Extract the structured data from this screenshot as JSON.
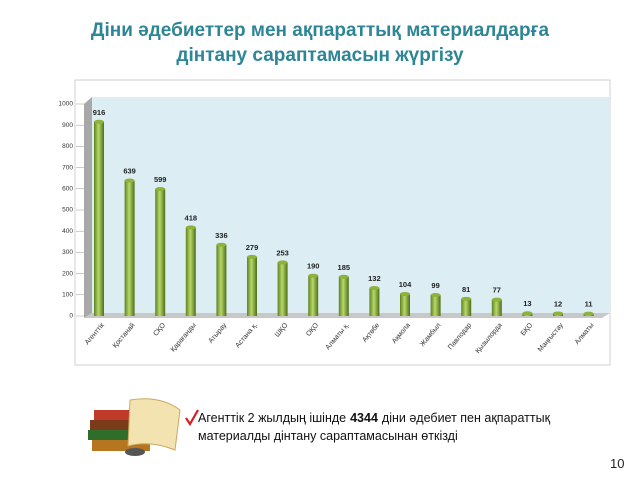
{
  "title": [
    "Діни әдебиеттер мен ақпараттық материалдарға",
    "дінтану сараптамасын жүргізу"
  ],
  "chart_data": {
    "type": "bar",
    "categories": [
      "Агенттік",
      "Қостанай",
      "СҚО",
      "Қарағанды",
      "Атырау",
      "Астана қ.",
      "ШҚО",
      "ОҚО",
      "Алматы қ.",
      "Ақтөбе",
      "Ақмола",
      "Жамбыл",
      "Павлодар",
      "Қызылорда",
      "БҚО",
      "Маңғыстау",
      "Алматы"
    ],
    "values": [
      916,
      639,
      599,
      418,
      336,
      279,
      253,
      190,
      185,
      132,
      104,
      99,
      81,
      77,
      13,
      12,
      11
    ],
    "color": "#8db33a",
    "ylim": [
      0,
      1000
    ],
    "yticks": [
      0,
      100,
      200,
      300,
      400,
      500,
      600,
      700,
      800,
      900,
      1000
    ],
    "grid": false,
    "value_labels_shown": true
  },
  "note": {
    "before": "Агенттік 2 жылдың ішінде",
    "bold": "4344",
    "after": "діни әдебиет пен ақпараттық",
    "line2": "материалды дінтану сараптамасынан өткізді"
  },
  "page_number": "10"
}
